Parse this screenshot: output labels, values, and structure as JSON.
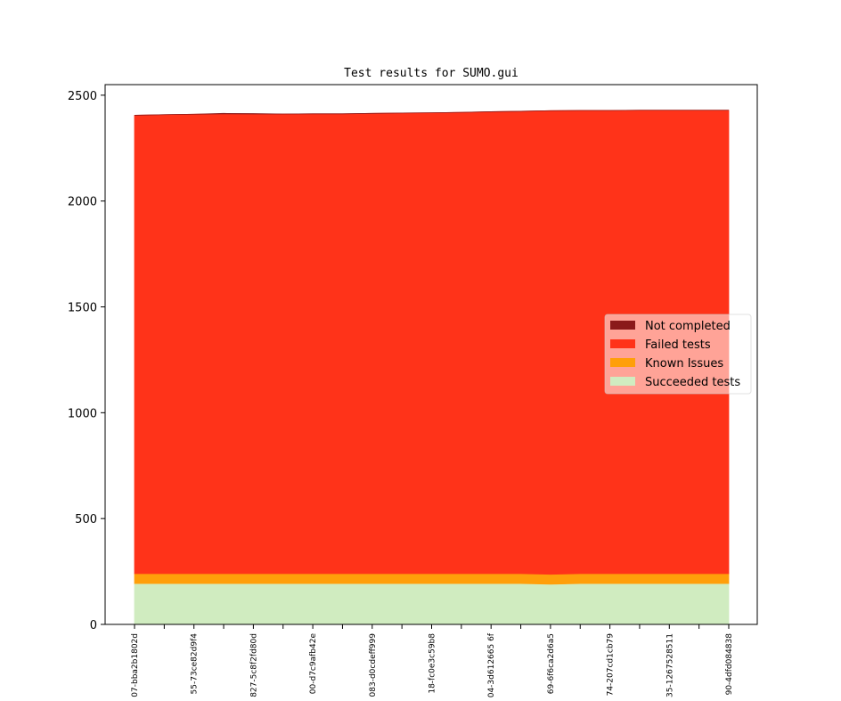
{
  "chart_data": {
    "type": "area",
    "stacked": true,
    "title": "Test results for SUMO.gui",
    "xlabel": "",
    "ylabel": "",
    "ylim": [
      0,
      2550
    ],
    "yticks": [
      0,
      500,
      1000,
      1500,
      2000,
      2500
    ],
    "grid": false,
    "legend_position": "center-right",
    "x": [
      "07-bba2b1802d",
      "",
      "55-73ce82d9f4",
      "",
      "827-5c8f2fd80d",
      "",
      "00-d7c9afb42e",
      "",
      "083-d0cdeff999",
      "",
      "18-fc0e3c59b8",
      "",
      "04-3d612665 6f",
      "",
      "69-6f6ca2d6a5",
      "",
      "74-207cd1cb79",
      "",
      "35-1267528511",
      "",
      "90-4dfd084838"
    ],
    "series": [
      {
        "name": "Succeeded tests",
        "color": "#d0ecc0",
        "values": [
          193,
          193,
          193,
          193,
          193,
          193,
          193,
          193,
          193,
          193,
          193,
          193,
          193,
          193,
          190,
          193,
          193,
          193,
          193,
          193,
          193
        ]
      },
      {
        "name": "Known Issues",
        "color": "#ff9f0a",
        "values": [
          47,
          47,
          47,
          47,
          47,
          47,
          47,
          47,
          47,
          47,
          47,
          47,
          47,
          47,
          47,
          47,
          47,
          47,
          47,
          47,
          47
        ]
      },
      {
        "name": "Failed tests",
        "color": "#ff3319",
        "values": [
          2165,
          2168,
          2170,
          2172,
          2171,
          2171,
          2172,
          2172,
          2174,
          2176,
          2177,
          2179,
          2182,
          2184,
          2190,
          2188,
          2188,
          2189,
          2189,
          2189,
          2189
        ]
      },
      {
        "name": "Not completed",
        "color": "#8b1a1a",
        "values": [
          0,
          0,
          0,
          2,
          2,
          0,
          0,
          0,
          0,
          0,
          0,
          0,
          0,
          0,
          0,
          0,
          0,
          0,
          0,
          0,
          0
        ]
      }
    ],
    "legend": [
      "Not completed",
      "Failed tests",
      "Known Issues",
      "Succeeded tests"
    ]
  }
}
